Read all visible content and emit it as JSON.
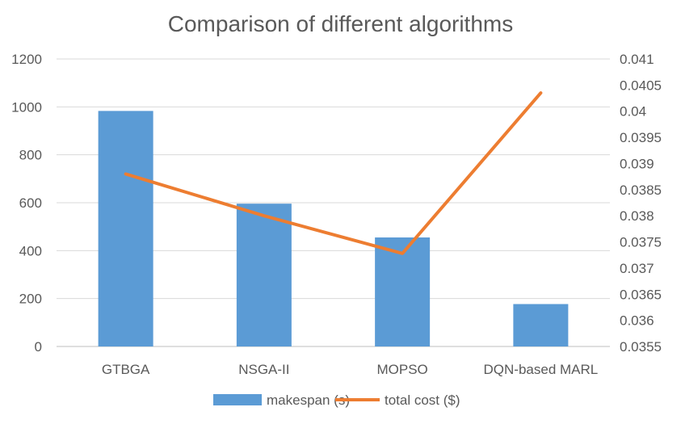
{
  "chart_data": {
    "type": "bar",
    "title": "Comparison of different algorithms",
    "categories": [
      "GTBGA",
      "NSGA-II",
      "MOPSO",
      "DQN-based MARL"
    ],
    "series": [
      {
        "name": "makespan (s)",
        "type": "bar",
        "axis": "left",
        "color": "#5B9BD5",
        "values": [
          983,
          596,
          455,
          177
        ]
      },
      {
        "name": "total cost ($)",
        "type": "line",
        "axis": "right",
        "color": "#ED7D31",
        "values": [
          0.0388,
          0.038,
          0.03728,
          0.04035
        ]
      }
    ],
    "y_left": {
      "ylim": [
        0,
        1200
      ],
      "ticks": [
        0,
        200,
        400,
        600,
        800,
        1000,
        1200
      ],
      "tick_labels": [
        "0",
        "200",
        "400",
        "600",
        "800",
        "1000",
        "1200"
      ]
    },
    "y_right": {
      "ylim": [
        0.0355,
        0.041
      ],
      "ticks": [
        0.0355,
        0.036,
        0.0365,
        0.037,
        0.0375,
        0.038,
        0.0385,
        0.039,
        0.0395,
        0.04,
        0.0405,
        0.041
      ],
      "tick_labels": [
        "0.0355",
        "0.036",
        "0.0365",
        "0.037",
        "0.0375",
        "0.038",
        "0.0385",
        "0.039",
        "0.0395",
        "0.04",
        "0.0405",
        "0.041"
      ]
    },
    "grid": true,
    "legend": "bottom"
  }
}
